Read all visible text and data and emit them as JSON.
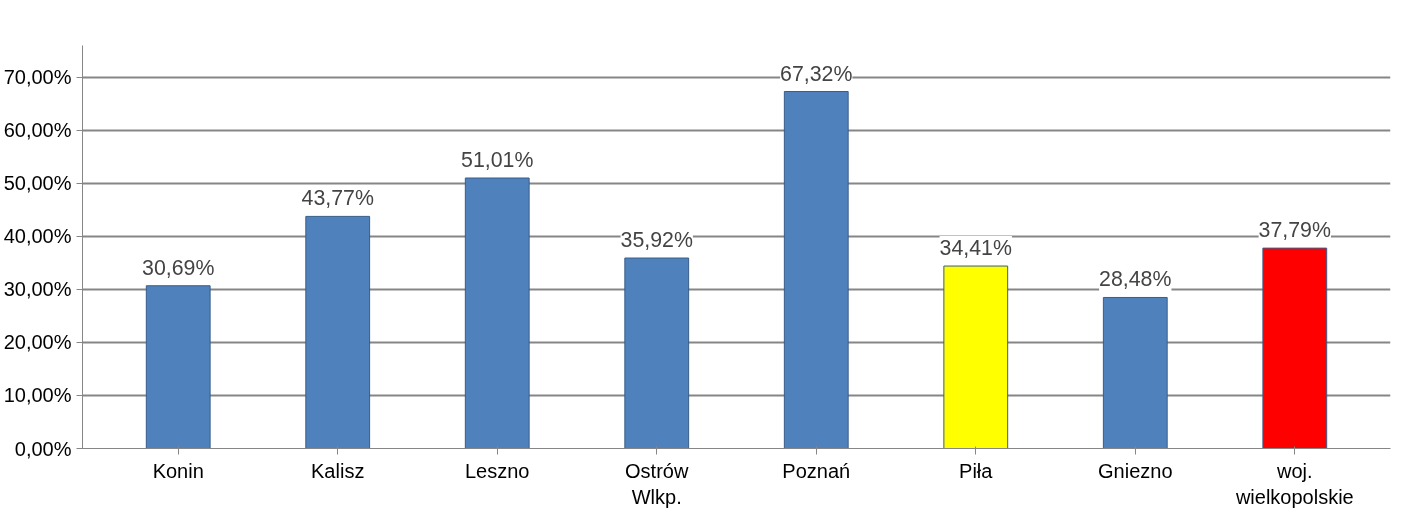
{
  "chart_data": {
    "type": "bar",
    "categories": [
      "Konin",
      "Kalisz",
      "Leszno",
      "Ostrów\nWlkp.",
      "Poznań",
      "Piła",
      "Gniezno",
      "woj.\nwielkopolskie"
    ],
    "values": [
      30.69,
      43.77,
      51.01,
      35.92,
      67.32,
      34.41,
      28.48,
      37.79
    ],
    "colors": [
      "#4f81bd",
      "#4f81bd",
      "#4f81bd",
      "#4f81bd",
      "#4f81bd",
      "#ffff00",
      "#4f81bd",
      "#ff0000"
    ],
    "value_labels": [
      "30,69%",
      "43,77%",
      "51,01%",
      "35,92%",
      "67,32%",
      "34,41%",
      "28,48%",
      "37,79%"
    ],
    "ylim": [
      0,
      76
    ],
    "yticks": [
      {
        "value": 0,
        "label": "0,00%"
      },
      {
        "value": 10,
        "label": "10,00%"
      },
      {
        "value": 20,
        "label": "20,00%"
      },
      {
        "value": 30,
        "label": "30,00%"
      },
      {
        "value": 40,
        "label": "40,00%"
      },
      {
        "value": 50,
        "label": "50,00%"
      },
      {
        "value": 60,
        "label": "60,00%"
      },
      {
        "value": 70,
        "label": "70,00%"
      }
    ],
    "grid": "y"
  }
}
